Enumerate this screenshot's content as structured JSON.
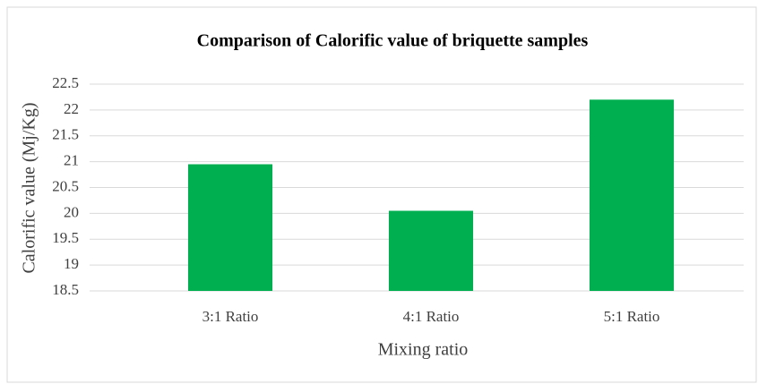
{
  "chart_data": {
    "type": "bar",
    "title": "Comparison of Calorific value of briquette samples",
    "x_label": "Mixing ratio",
    "y_label": "Calorific value (Mj/Kg)",
    "categories": [
      "3:1 Ratio",
      "4:1 Ratio",
      "5:1 Ratio"
    ],
    "values": [
      20.95,
      20.05,
      22.2
    ],
    "color": "#00b050",
    "ylim": [
      18.5,
      22.5
    ],
    "yticks": [
      18.5,
      19,
      19.5,
      20,
      20.5,
      21,
      21.5,
      22,
      22.5
    ],
    "grid": true
  }
}
